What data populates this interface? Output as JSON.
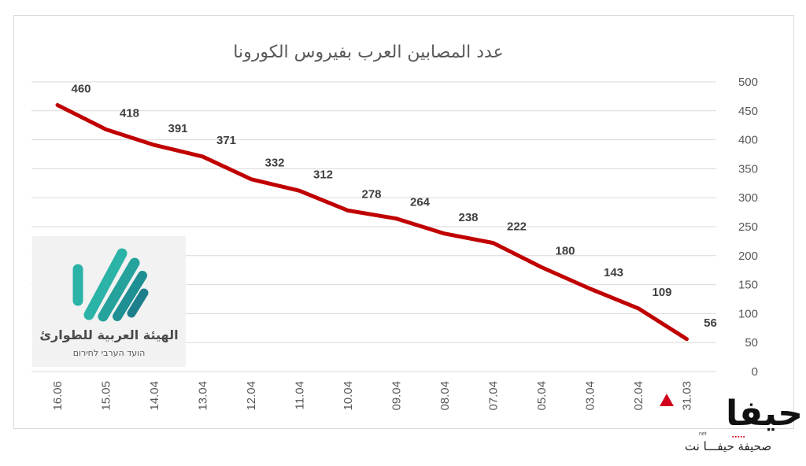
{
  "chart_data": {
    "type": "line",
    "title": "عدد المصابين العرب بفيروس الكورونا",
    "categories": [
      "16.06",
      "15.05",
      "14.04",
      "13.04",
      "12.04",
      "11.04",
      "10.04",
      "09.04",
      "08.04",
      "07.04",
      "05.04",
      "03.04",
      "02.04",
      "31.03"
    ],
    "series": [
      {
        "values": [
          460,
          418,
          391,
          371,
          332,
          312,
          278,
          264,
          238,
          222,
          180,
          143,
          109,
          56
        ],
        "color": "#c00000"
      }
    ],
    "ylim": [
      0,
      500
    ],
    "yticks": [
      0,
      50,
      100,
      150,
      200,
      250,
      300,
      350,
      400,
      450,
      500
    ],
    "ytick_labels": [
      "0",
      "50",
      "100",
      "150",
      "200",
      "250",
      "300",
      "350",
      "400",
      "450",
      "500"
    ],
    "y_axis_position": "right",
    "xtick_rotation": -90,
    "grid": "horizontal",
    "legend": "none",
    "data_labels": true
  },
  "logo": {
    "name_arabic": "الهيئة العربية للطوارئ",
    "name_hebrew": "הועד הערבי לחירום",
    "icon": "diagonal-stripes-check-icon",
    "colors": [
      "#2ab3a6",
      "#1e7f8c"
    ]
  },
  "brand": {
    "logo_text": "حيفا",
    "net_label": "net",
    "tagline": "صحيفة حيفـــا نت",
    "accent": "#d0021b"
  }
}
